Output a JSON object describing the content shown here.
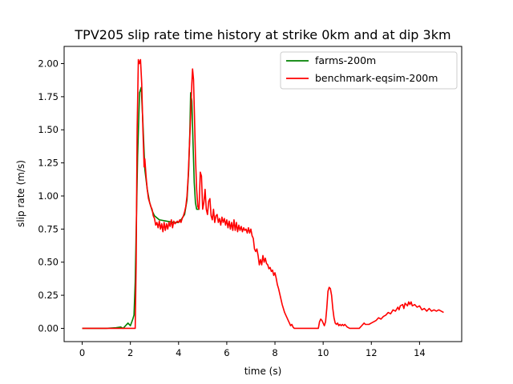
{
  "chart_data": {
    "type": "line",
    "title": "TPV205 slip rate time history at strike 0km and at dip 3km",
    "xlabel": "time (s)",
    "ylabel": "slip rate (m/s)",
    "xlim": [
      -0.75,
      15.75
    ],
    "ylim": [
      -0.1,
      2.13
    ],
    "xticks": [
      0,
      2,
      4,
      6,
      8,
      10,
      12,
      14
    ],
    "xtick_labels": [
      "0",
      "2",
      "4",
      "6",
      "8",
      "10",
      "12",
      "14"
    ],
    "yticks": [
      0.0,
      0.25,
      0.5,
      0.75,
      1.0,
      1.25,
      1.5,
      1.75,
      2.0
    ],
    "ytick_labels": [
      "0.00",
      "0.25",
      "0.50",
      "0.75",
      "1.00",
      "1.25",
      "1.50",
      "1.75",
      "2.00"
    ],
    "grid": false,
    "legend_position": "top-right",
    "series": [
      {
        "name": "farms-200m",
        "color": "#008000",
        "points": [
          [
            0.0,
            0.0
          ],
          [
            1.0,
            0.0
          ],
          [
            1.4,
            0.005
          ],
          [
            1.6,
            0.01
          ],
          [
            1.7,
            0.0
          ],
          [
            1.8,
            0.02
          ],
          [
            1.9,
            0.04
          ],
          [
            2.0,
            0.02
          ],
          [
            2.1,
            0.07
          ],
          [
            2.15,
            0.1
          ],
          [
            2.2,
            0.35
          ],
          [
            2.3,
            1.3
          ],
          [
            2.38,
            1.78
          ],
          [
            2.45,
            1.82
          ],
          [
            2.52,
            1.55
          ],
          [
            2.6,
            1.2
          ],
          [
            2.7,
            1.05
          ],
          [
            2.8,
            0.95
          ],
          [
            2.9,
            0.89
          ],
          [
            3.0,
            0.85
          ],
          [
            3.2,
            0.82
          ],
          [
            3.5,
            0.81
          ],
          [
            3.8,
            0.8
          ],
          [
            4.0,
            0.8
          ],
          [
            4.1,
            0.82
          ],
          [
            4.25,
            0.86
          ],
          [
            4.35,
            0.97
          ],
          [
            4.42,
            1.2
          ],
          [
            4.47,
            1.5
          ],
          [
            4.5,
            1.78
          ],
          [
            4.55,
            1.72
          ],
          [
            4.6,
            1.4
          ],
          [
            4.65,
            1.1
          ],
          [
            4.7,
            0.95
          ],
          [
            4.75,
            0.9
          ],
          [
            4.85,
            0.9
          ]
        ]
      },
      {
        "name": "benchmark-eqsim-200m",
        "color": "#ff0000",
        "points": [
          [
            0.0,
            0.0
          ],
          [
            1.0,
            0.0
          ],
          [
            1.5,
            0.0
          ],
          [
            1.8,
            0.0
          ],
          [
            2.0,
            0.0
          ],
          [
            2.2,
            0.0
          ],
          [
            2.24,
            0.5
          ],
          [
            2.28,
            1.5
          ],
          [
            2.33,
            2.03
          ],
          [
            2.37,
            2.0
          ],
          [
            2.42,
            2.03
          ],
          [
            2.47,
            1.85
          ],
          [
            2.52,
            1.5
          ],
          [
            2.57,
            1.22
          ],
          [
            2.6,
            1.28
          ],
          [
            2.65,
            1.15
          ],
          [
            2.7,
            1.05
          ],
          [
            2.75,
            0.98
          ],
          [
            2.8,
            0.95
          ],
          [
            2.85,
            0.92
          ],
          [
            2.9,
            0.9
          ],
          [
            2.95,
            0.85
          ],
          [
            3.0,
            0.83
          ],
          [
            3.05,
            0.78
          ],
          [
            3.1,
            0.8
          ],
          [
            3.15,
            0.76
          ],
          [
            3.2,
            0.81
          ],
          [
            3.25,
            0.75
          ],
          [
            3.3,
            0.79
          ],
          [
            3.35,
            0.73
          ],
          [
            3.4,
            0.8
          ],
          [
            3.45,
            0.74
          ],
          [
            3.5,
            0.79
          ],
          [
            3.55,
            0.75
          ],
          [
            3.6,
            0.8
          ],
          [
            3.65,
            0.77
          ],
          [
            3.7,
            0.82
          ],
          [
            3.75,
            0.76
          ],
          [
            3.8,
            0.81
          ],
          [
            3.85,
            0.79
          ],
          [
            3.9,
            0.8
          ],
          [
            3.95,
            0.81
          ],
          [
            4.0,
            0.8
          ],
          [
            4.05,
            0.82
          ],
          [
            4.1,
            0.8
          ],
          [
            4.15,
            0.83
          ],
          [
            4.2,
            0.85
          ],
          [
            4.25,
            0.88
          ],
          [
            4.3,
            0.92
          ],
          [
            4.35,
            1.0
          ],
          [
            4.4,
            1.15
          ],
          [
            4.45,
            1.38
          ],
          [
            4.5,
            1.6
          ],
          [
            4.55,
            1.85
          ],
          [
            4.58,
            1.96
          ],
          [
            4.62,
            1.88
          ],
          [
            4.66,
            1.6
          ],
          [
            4.7,
            1.3
          ],
          [
            4.75,
            1.05
          ],
          [
            4.8,
            0.92
          ],
          [
            4.85,
            0.9
          ],
          [
            4.9,
            1.18
          ],
          [
            4.95,
            1.15
          ],
          [
            5.0,
            0.9
          ],
          [
            5.05,
            0.95
          ],
          [
            5.1,
            1.05
          ],
          [
            5.15,
            0.9
          ],
          [
            5.2,
            0.86
          ],
          [
            5.25,
            0.96
          ],
          [
            5.3,
            0.98
          ],
          [
            5.35,
            0.85
          ],
          [
            5.4,
            0.82
          ],
          [
            5.45,
            0.9
          ],
          [
            5.5,
            0.8
          ],
          [
            5.55,
            0.85
          ],
          [
            5.6,
            0.86
          ],
          [
            5.65,
            0.8
          ],
          [
            5.7,
            0.83
          ],
          [
            5.75,
            0.78
          ],
          [
            5.8,
            0.84
          ],
          [
            5.85,
            0.8
          ],
          [
            5.9,
            0.83
          ],
          [
            5.95,
            0.78
          ],
          [
            6.0,
            0.82
          ],
          [
            6.05,
            0.76
          ],
          [
            6.1,
            0.81
          ],
          [
            6.15,
            0.75
          ],
          [
            6.2,
            0.8
          ],
          [
            6.25,
            0.74
          ],
          [
            6.3,
            0.82
          ],
          [
            6.35,
            0.74
          ],
          [
            6.4,
            0.8
          ],
          [
            6.45,
            0.73
          ],
          [
            6.5,
            0.78
          ],
          [
            6.55,
            0.74
          ],
          [
            6.6,
            0.77
          ],
          [
            6.65,
            0.73
          ],
          [
            6.7,
            0.76
          ],
          [
            6.75,
            0.74
          ],
          [
            6.8,
            0.75
          ],
          [
            6.85,
            0.72
          ],
          [
            6.9,
            0.76
          ],
          [
            6.95,
            0.72
          ],
          [
            7.0,
            0.75
          ],
          [
            7.05,
            0.7
          ],
          [
            7.1,
            0.68
          ],
          [
            7.15,
            0.6
          ],
          [
            7.2,
            0.58
          ],
          [
            7.25,
            0.6
          ],
          [
            7.3,
            0.55
          ],
          [
            7.35,
            0.48
          ],
          [
            7.4,
            0.52
          ],
          [
            7.45,
            0.48
          ],
          [
            7.5,
            0.55
          ],
          [
            7.55,
            0.5
          ],
          [
            7.6,
            0.53
          ],
          [
            7.65,
            0.49
          ],
          [
            7.7,
            0.48
          ],
          [
            7.75,
            0.45
          ],
          [
            7.8,
            0.46
          ],
          [
            7.85,
            0.43
          ],
          [
            7.9,
            0.44
          ],
          [
            7.95,
            0.4
          ],
          [
            8.0,
            0.42
          ],
          [
            8.05,
            0.38
          ],
          [
            8.1,
            0.33
          ],
          [
            8.15,
            0.3
          ],
          [
            8.2,
            0.26
          ],
          [
            8.25,
            0.22
          ],
          [
            8.3,
            0.18
          ],
          [
            8.35,
            0.15
          ],
          [
            8.4,
            0.12
          ],
          [
            8.45,
            0.1
          ],
          [
            8.5,
            0.08
          ],
          [
            8.55,
            0.06
          ],
          [
            8.6,
            0.04
          ],
          [
            8.65,
            0.02
          ],
          [
            8.7,
            0.03
          ],
          [
            8.75,
            0.01
          ],
          [
            8.8,
            0.0
          ],
          [
            9.0,
            0.0
          ],
          [
            9.2,
            0.0
          ],
          [
            9.4,
            0.0
          ],
          [
            9.6,
            0.0
          ],
          [
            9.8,
            0.0
          ],
          [
            9.85,
            0.05
          ],
          [
            9.9,
            0.07
          ],
          [
            9.95,
            0.06
          ],
          [
            10.0,
            0.04
          ],
          [
            10.05,
            0.02
          ],
          [
            10.1,
            0.05
          ],
          [
            10.15,
            0.15
          ],
          [
            10.2,
            0.28
          ],
          [
            10.25,
            0.31
          ],
          [
            10.3,
            0.3
          ],
          [
            10.35,
            0.25
          ],
          [
            10.4,
            0.15
          ],
          [
            10.45,
            0.08
          ],
          [
            10.5,
            0.04
          ],
          [
            10.55,
            0.03
          ],
          [
            10.6,
            0.04
          ],
          [
            10.65,
            0.02
          ],
          [
            10.7,
            0.03
          ],
          [
            10.75,
            0.02
          ],
          [
            10.8,
            0.03
          ],
          [
            10.85,
            0.02
          ],
          [
            10.9,
            0.03
          ],
          [
            11.0,
            0.01
          ],
          [
            11.1,
            0.0
          ],
          [
            11.5,
            0.0
          ],
          [
            11.6,
            0.02
          ],
          [
            11.7,
            0.04
          ],
          [
            11.75,
            0.03
          ],
          [
            11.8,
            0.03
          ],
          [
            11.9,
            0.03
          ],
          [
            12.0,
            0.04
          ],
          [
            12.1,
            0.05
          ],
          [
            12.2,
            0.06
          ],
          [
            12.3,
            0.08
          ],
          [
            12.4,
            0.07
          ],
          [
            12.5,
            0.09
          ],
          [
            12.6,
            0.1
          ],
          [
            12.7,
            0.12
          ],
          [
            12.8,
            0.11
          ],
          [
            12.9,
            0.14
          ],
          [
            13.0,
            0.13
          ],
          [
            13.1,
            0.16
          ],
          [
            13.15,
            0.14
          ],
          [
            13.2,
            0.17
          ],
          [
            13.3,
            0.18
          ],
          [
            13.35,
            0.15
          ],
          [
            13.4,
            0.19
          ],
          [
            13.5,
            0.17
          ],
          [
            13.55,
            0.2
          ],
          [
            13.6,
            0.18
          ],
          [
            13.65,
            0.2
          ],
          [
            13.7,
            0.17
          ],
          [
            13.8,
            0.18
          ],
          [
            13.9,
            0.16
          ],
          [
            14.0,
            0.17
          ],
          [
            14.1,
            0.14
          ],
          [
            14.2,
            0.15
          ],
          [
            14.3,
            0.13
          ],
          [
            14.4,
            0.15
          ],
          [
            14.5,
            0.13
          ],
          [
            14.6,
            0.14
          ],
          [
            14.7,
            0.13
          ],
          [
            14.8,
            0.14
          ],
          [
            14.9,
            0.13
          ],
          [
            15.0,
            0.12
          ]
        ]
      }
    ]
  }
}
